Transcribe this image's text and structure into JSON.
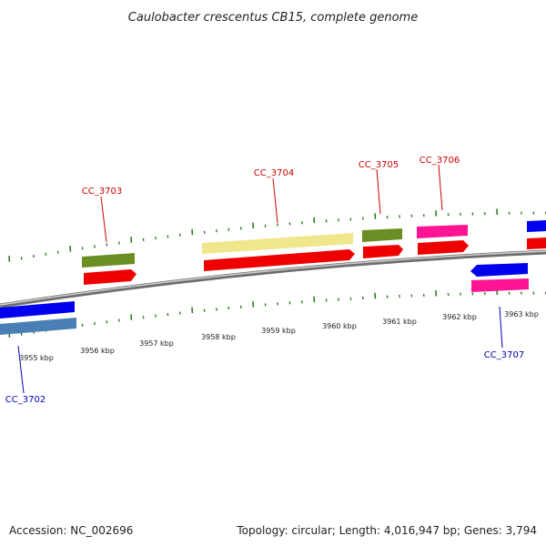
{
  "title": "Caulobacter crescentus CB15, complete genome",
  "footer": {
    "accession": "Accession: NC_002696",
    "summary": "Topology: circular; Length: 4,016,947 bp; Genes: 3,794"
  },
  "colors": {
    "forward_label": "#cc0000",
    "reverse_label": "#0000bb",
    "tick": "#2e7d1f",
    "backbone": "#8a8a8a"
  },
  "ticks": [
    {
      "kbp": 3955,
      "label": "3955 kbp"
    },
    {
      "kbp": 3956,
      "label": "3956 kbp"
    },
    {
      "kbp": 3957,
      "label": "3957 kbp"
    },
    {
      "kbp": 3958,
      "label": "3958 kbp"
    },
    {
      "kbp": 3959,
      "label": "3959 kbp"
    },
    {
      "kbp": 3960,
      "label": "3960 kbp"
    },
    {
      "kbp": 3961,
      "label": "3961 kbp"
    },
    {
      "kbp": 3962,
      "label": "3962 kbp"
    },
    {
      "kbp": 3963,
      "label": "3963 kbp"
    }
  ],
  "features": [
    {
      "id": "CC_3702",
      "strand": "reverse",
      "label": "CC_3702",
      "color": "#4a7fb5",
      "cds_color": "#0000ee"
    },
    {
      "id": "CC_3703",
      "strand": "forward",
      "label": "CC_3703",
      "color": "#6b8e23",
      "cds_color": "#ee0000"
    },
    {
      "id": "CC_3704",
      "strand": "forward",
      "label": "CC_3704",
      "color": "#f0e68c",
      "cds_color": "#ee0000"
    },
    {
      "id": "CC_3705",
      "strand": "forward",
      "label": "CC_3705",
      "color": "#6b8e23",
      "cds_color": "#ee0000"
    },
    {
      "id": "CC_3706",
      "strand": "forward",
      "label": "CC_3706",
      "color": "#ff1493",
      "cds_color": "#ee0000"
    },
    {
      "id": "CC_3707",
      "strand": "reverse",
      "label": "CC_3707",
      "color": "#ff1493",
      "cds_color": "#0000ee"
    },
    {
      "id": "next-gene",
      "strand": "forward",
      "label": "",
      "color": "#0000ee",
      "cds_color": "#ee0000"
    }
  ]
}
